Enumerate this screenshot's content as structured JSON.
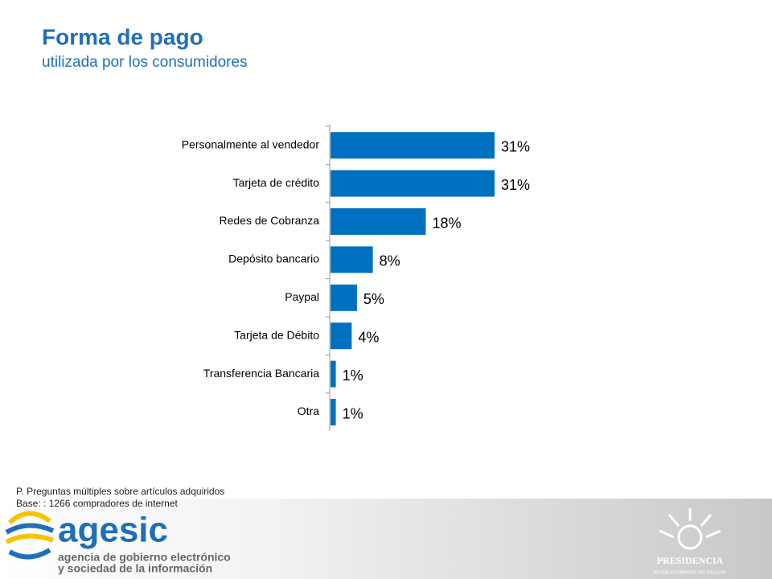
{
  "chart_data": {
    "type": "bar",
    "orientation": "horizontal",
    "title": "Forma de pago",
    "subtitle": "utilizada por los consumidores",
    "categories": [
      "Personalmente al vendedor",
      "Tarjeta de crédito",
      "Redes de Cobranza",
      "Depósito bancario",
      "Paypal",
      "Tarjeta de Débito",
      "Transferencia Bancaria",
      "Otra"
    ],
    "values": [
      31,
      31,
      18,
      8,
      5,
      4,
      1,
      1
    ],
    "value_labels": [
      "31%",
      "31%",
      "18%",
      "8%",
      "5%",
      "4%",
      "1%",
      "1%"
    ],
    "color": "#0070c0"
  },
  "notes": [
    "P. Preguntas múltiples sobre artículos adquiridos",
    "Base: : 1266 compradores de internet"
  ],
  "footer": {
    "logo_text": "agesic",
    "logo_line1": "agencia de gobierno electrónico",
    "logo_line2": "y sociedad de la información",
    "presidencia": "PRESIDENCIA",
    "presidencia_sub": "REPÚBLICA ORIENTAL DEL URUGUAY"
  }
}
